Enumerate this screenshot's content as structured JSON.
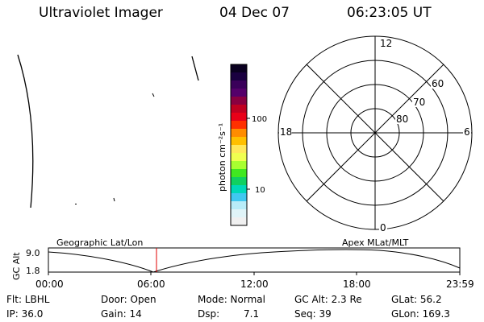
{
  "header": {
    "title": "Ultraviolet Imager",
    "date": "04 Dec 07",
    "time": "06:23:05 UT"
  },
  "colorbar": {
    "label": "photon cm⁻²s⁻¹",
    "ticks": [
      "100",
      "10"
    ],
    "colors": [
      "#0a0020",
      "#1a0040",
      "#3a005a",
      "#55006a",
      "#8a0040",
      "#c00020",
      "#e80018",
      "#ff3000",
      "#ff8c00",
      "#ffc000",
      "#ffe85a",
      "#f0ff50",
      "#a8ff30",
      "#40e820",
      "#10d060",
      "#00d8b8",
      "#40c8f0",
      "#b8ecf8",
      "#e0f4f8",
      "#f0f0f0"
    ]
  },
  "polar": {
    "labels": {
      "top": "12",
      "bottom": "0",
      "left": "18",
      "right": "6"
    },
    "rings": [
      "60",
      "70",
      "80"
    ]
  },
  "timeline": {
    "ylabel": "GC Alt",
    "yticks": [
      "9.0",
      "1.8"
    ],
    "left_label": "Geographic Lat/Lon",
    "right_label": "Apex MLat/MLT",
    "xticks": [
      "00:00",
      "06:00",
      "12:00",
      "18:00",
      "23:59"
    ]
  },
  "info": {
    "flt": "Flt: LBHL",
    "door": "Door: Open",
    "mode": "Mode: Normal",
    "gcalt": "GC Alt: 2.3 Re",
    "glat": "GLat: 56.2",
    "ip": "IP: 36.0",
    "gain": "Gain: 14",
    "dsp_label": "Dsp:",
    "dsp_value": "7.1",
    "seq": "Seq: 39",
    "glon": "GLon: 169.3"
  }
}
